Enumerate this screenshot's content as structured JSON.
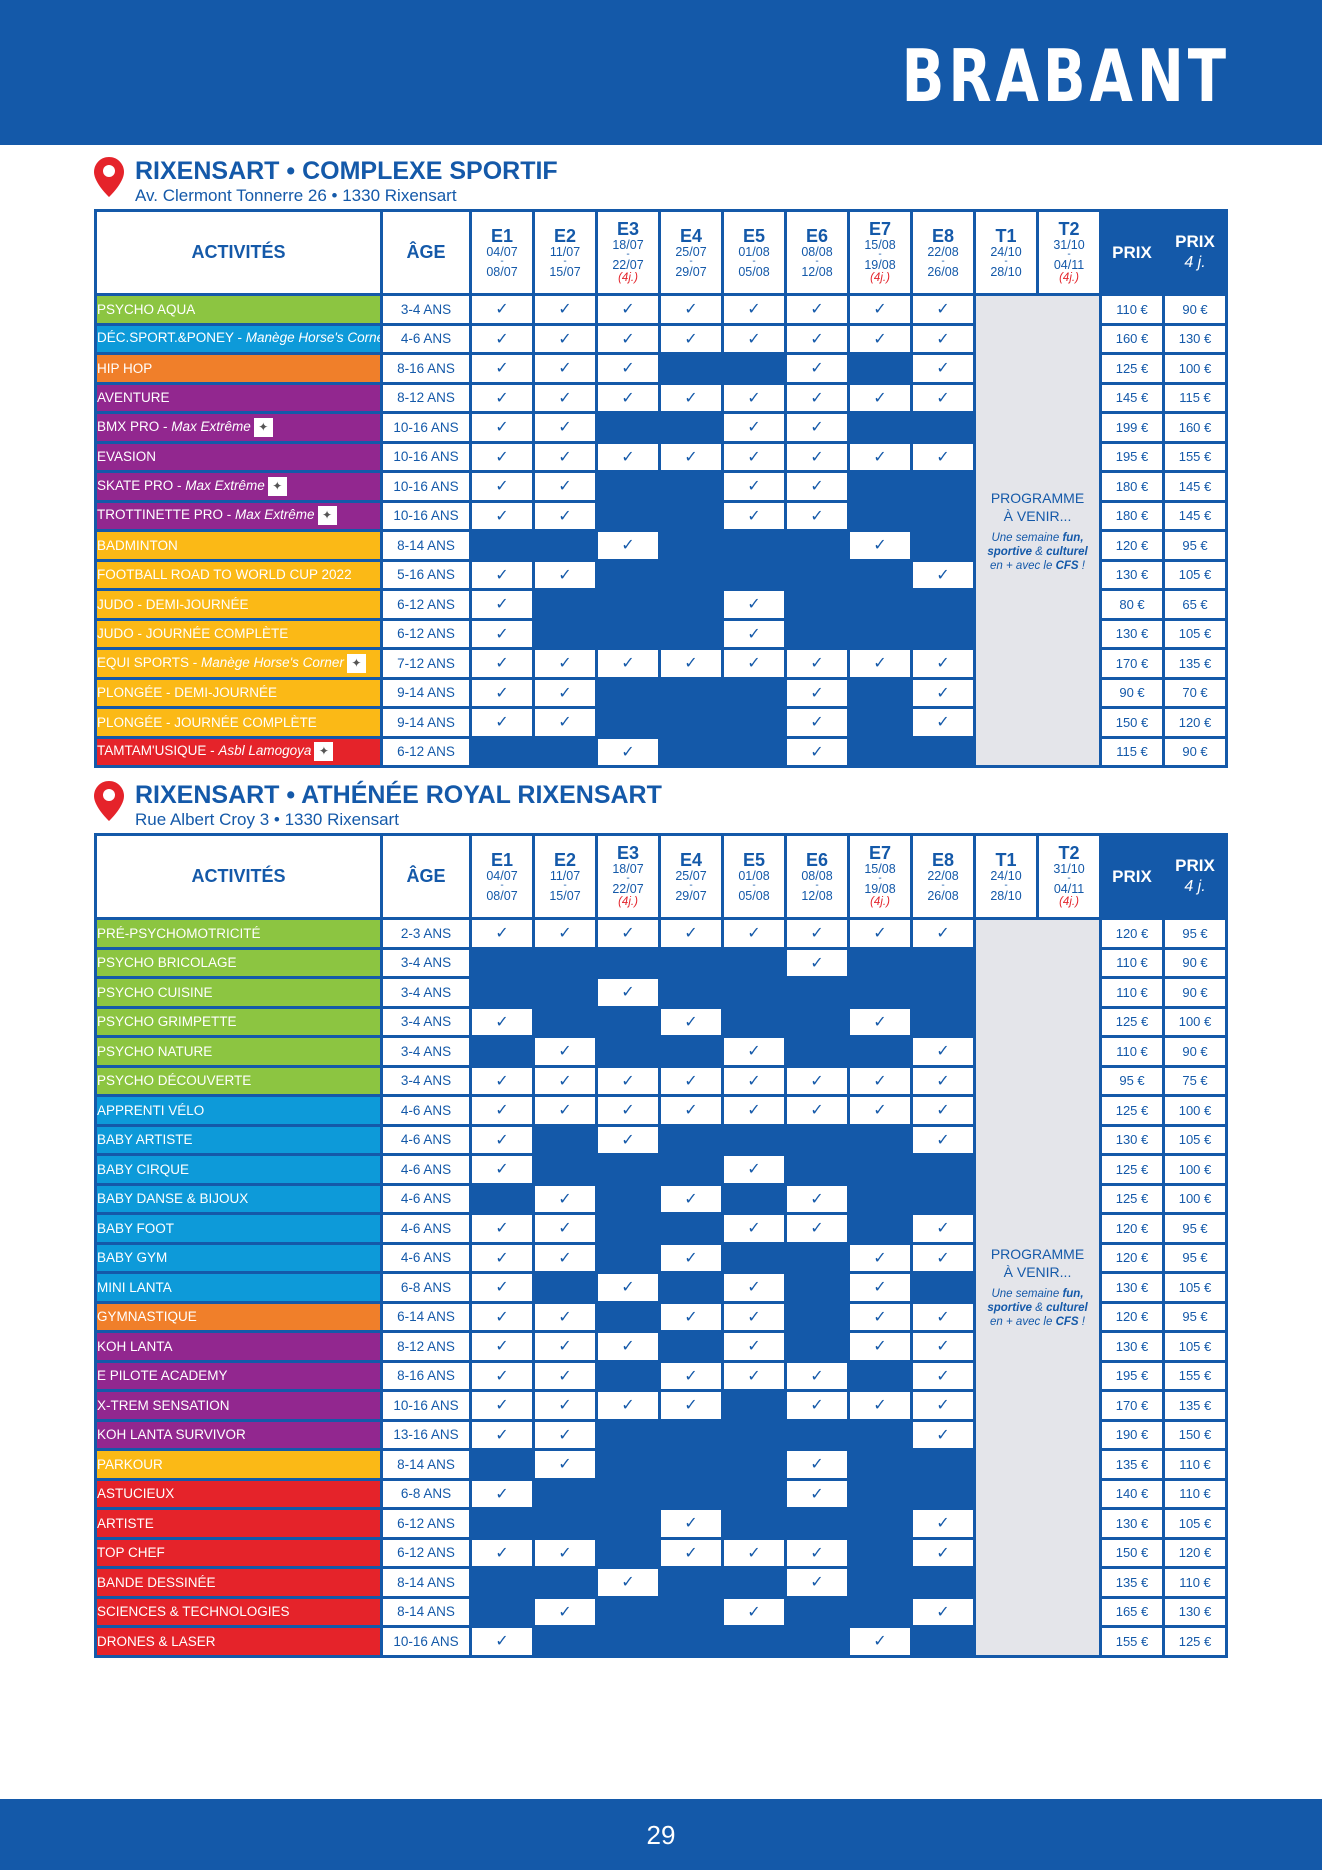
{
  "region_title": "BRABANT",
  "page_number": "29",
  "columns": {
    "activities": "ACTIVITÉS",
    "age": "ÂGE",
    "weeks": [
      {
        "code": "E1",
        "from": "04/07",
        "to": "08/07",
        "short": ""
      },
      {
        "code": "E2",
        "from": "11/07",
        "to": "15/07",
        "short": ""
      },
      {
        "code": "E3",
        "from": "18/07",
        "to": "22/07",
        "short": "(4j.)"
      },
      {
        "code": "E4",
        "from": "25/07",
        "to": "29/07",
        "short": ""
      },
      {
        "code": "E5",
        "from": "01/08",
        "to": "05/08",
        "short": ""
      },
      {
        "code": "E6",
        "from": "08/08",
        "to": "12/08",
        "short": ""
      },
      {
        "code": "E7",
        "from": "15/08",
        "to": "19/08",
        "short": "(4j.)"
      },
      {
        "code": "E8",
        "from": "22/08",
        "to": "26/08",
        "short": ""
      },
      {
        "code": "T1",
        "from": "24/10",
        "to": "28/10",
        "short": ""
      },
      {
        "code": "T2",
        "from": "31/10",
        "to": "04/11",
        "short": "(4j.)"
      }
    ],
    "price": "PRIX",
    "price4_line1": "PRIX",
    "price4_line2": "4 j."
  },
  "programme": {
    "line1": "PROGRAMME",
    "line2": "À VENIR...",
    "note_a": "Une semaine ",
    "note_fun": "fun,",
    "note_sportive": "sportive",
    "note_amp": " & ",
    "note_culturel": "culturel",
    "note_c": "en + avec le ",
    "note_cfs": "CFS",
    "note_end": " !"
  },
  "colors": {
    "green": "#8cc541",
    "blue": "#0d9ad9",
    "orange": "#f07f2a",
    "purple": "#92278f",
    "yellow": "#fbb916",
    "red": "#e5232a",
    "brand": "#1459a9"
  },
  "check_mark": "✓",
  "locations": [
    {
      "name": "RIXENSART • COMPLEXE SPORTIF",
      "address": "Av. Clermont Tonnerre 26 • 1330 Rixensart",
      "rows": [
        {
          "name": "PSYCHO AQUA",
          "partner": "",
          "logo": "",
          "color": "green",
          "age": "3-4 ANS",
          "weeks": [
            1,
            1,
            1,
            1,
            1,
            1,
            1,
            1
          ],
          "price": "110 €",
          "price4": "90 €"
        },
        {
          "name": "DÉC.SPORT.&PONEY - ",
          "partner": "Manège Horse's Corner",
          "logo": "horse-logo",
          "color": "blue",
          "age": "4-6 ANS",
          "weeks": [
            1,
            1,
            1,
            1,
            1,
            1,
            1,
            1
          ],
          "price": "160 €",
          "price4": "130 €"
        },
        {
          "name": "HIP HOP",
          "partner": "",
          "logo": "",
          "color": "orange",
          "age": "8-16 ANS",
          "weeks": [
            1,
            1,
            1,
            0,
            0,
            1,
            0,
            1
          ],
          "price": "125 €",
          "price4": "100 €"
        },
        {
          "name": "AVENTURE",
          "partner": "",
          "logo": "",
          "color": "purple",
          "age": "8-12 ANS",
          "weeks": [
            1,
            1,
            1,
            1,
            1,
            1,
            1,
            1
          ],
          "price": "145 €",
          "price4": "115 €"
        },
        {
          "name": "BMX PRO - ",
          "partner": "Max Extrême",
          "logo": "max-extreme-logo",
          "color": "purple",
          "age": "10-16 ANS",
          "weeks": [
            1,
            1,
            0,
            0,
            1,
            1,
            0,
            0
          ],
          "price": "199 €",
          "price4": "160 €"
        },
        {
          "name": "EVASION",
          "partner": "",
          "logo": "",
          "color": "purple",
          "age": "10-16 ANS",
          "weeks": [
            1,
            1,
            1,
            1,
            1,
            1,
            1,
            1
          ],
          "price": "195 €",
          "price4": "155 €"
        },
        {
          "name": "SKATE PRO - ",
          "partner": "Max Extrême",
          "logo": "max-extreme-logo",
          "color": "purple",
          "age": "10-16 ANS",
          "weeks": [
            1,
            1,
            0,
            0,
            1,
            1,
            0,
            0
          ],
          "price": "180 €",
          "price4": "145 €"
        },
        {
          "name": "TROTTINETTE PRO - ",
          "partner": "Max Extrême",
          "logo": "max-extreme-logo",
          "color": "purple",
          "age": "10-16 ANS",
          "weeks": [
            1,
            1,
            0,
            0,
            1,
            1,
            0,
            0
          ],
          "price": "180 €",
          "price4": "145 €"
        },
        {
          "name": "BADMINTON",
          "partner": "",
          "logo": "",
          "color": "yellow",
          "age": "8-14 ANS",
          "weeks": [
            0,
            0,
            1,
            0,
            0,
            0,
            1,
            0
          ],
          "price": "120 €",
          "price4": "95 €"
        },
        {
          "name": "FOOTBALL ROAD TO WORLD CUP 2022",
          "partner": "",
          "logo": "",
          "color": "yellow",
          "age": "5-16 ANS",
          "weeks": [
            1,
            1,
            0,
            0,
            0,
            0,
            0,
            1
          ],
          "price": "130 €",
          "price4": "105 €"
        },
        {
          "name": "JUDO - DEMI-JOURNÉE",
          "partner": "",
          "logo": "",
          "color": "yellow",
          "age": "6-12 ANS",
          "weeks": [
            1,
            0,
            0,
            0,
            1,
            0,
            0,
            0
          ],
          "price": "80 €",
          "price4": "65 €"
        },
        {
          "name": "JUDO - JOURNÉE COMPLÈTE",
          "partner": "",
          "logo": "",
          "color": "yellow",
          "age": "6-12 ANS",
          "weeks": [
            1,
            0,
            0,
            0,
            1,
            0,
            0,
            0
          ],
          "price": "130 €",
          "price4": "105 €"
        },
        {
          "name": "EQUI SPORTS - ",
          "partner": "Manège Horse's Corner",
          "logo": "horse-logo",
          "color": "yellow",
          "age": "7-12 ANS",
          "weeks": [
            1,
            1,
            1,
            1,
            1,
            1,
            1,
            1
          ],
          "price": "170 €",
          "price4": "135 €"
        },
        {
          "name": "PLONGÉE - DEMI-JOURNÉE",
          "partner": "",
          "logo": "",
          "color": "yellow",
          "age": "9-14 ANS",
          "weeks": [
            1,
            1,
            0,
            0,
            0,
            1,
            0,
            1
          ],
          "price": "90 €",
          "price4": "70 €"
        },
        {
          "name": "PLONGÉE - JOURNÉE COMPLÈTE",
          "partner": "",
          "logo": "",
          "color": "yellow",
          "age": "9-14 ANS",
          "weeks": [
            1,
            1,
            0,
            0,
            0,
            1,
            0,
            1
          ],
          "price": "150 €",
          "price4": "120 €"
        },
        {
          "name": "TAMTAM'USIQUE - ",
          "partner": "Asbl Lamogoya",
          "logo": "lamogoya-logo",
          "color": "red",
          "age": "6-12 ANS",
          "weeks": [
            0,
            0,
            1,
            0,
            0,
            1,
            0,
            0
          ],
          "price": "115 €",
          "price4": "90 €"
        }
      ]
    },
    {
      "name": "RIXENSART • ATHÉNÉE ROYAL RIXENSART",
      "address": "Rue Albert Croy 3 • 1330 Rixensart",
      "rows": [
        {
          "name": "PRÉ-PSYCHOMOTRICITÉ",
          "partner": "",
          "logo": "",
          "color": "green",
          "age": "2-3 ANS",
          "weeks": [
            1,
            1,
            1,
            1,
            1,
            1,
            1,
            1
          ],
          "price": "120 €",
          "price4": "95 €"
        },
        {
          "name": "PSYCHO BRICOLAGE",
          "partner": "",
          "logo": "",
          "color": "green",
          "age": "3-4 ANS",
          "weeks": [
            0,
            0,
            0,
            0,
            0,
            1,
            0,
            0
          ],
          "price": "110 €",
          "price4": "90 €"
        },
        {
          "name": "PSYCHO CUISINE",
          "partner": "",
          "logo": "",
          "color": "green",
          "age": "3-4 ANS",
          "weeks": [
            0,
            0,
            1,
            0,
            0,
            0,
            0,
            0
          ],
          "price": "110 €",
          "price4": "90 €"
        },
        {
          "name": "PSYCHO GRIMPETTE",
          "partner": "",
          "logo": "",
          "color": "green",
          "age": "3-4 ANS",
          "weeks": [
            1,
            0,
            0,
            1,
            0,
            0,
            1,
            0
          ],
          "price": "125 €",
          "price4": "100 €"
        },
        {
          "name": "PSYCHO NATURE",
          "partner": "",
          "logo": "",
          "color": "green",
          "age": "3-4 ANS",
          "weeks": [
            0,
            1,
            0,
            0,
            1,
            0,
            0,
            1
          ],
          "price": "110 €",
          "price4": "90 €"
        },
        {
          "name": "PSYCHO DÉCOUVERTE",
          "partner": "",
          "logo": "",
          "color": "green",
          "age": "3-4 ANS",
          "weeks": [
            1,
            1,
            1,
            1,
            1,
            1,
            1,
            1
          ],
          "price": "95 €",
          "price4": "75 €"
        },
        {
          "name": "APPRENTI VÉLO",
          "partner": "",
          "logo": "",
          "color": "blue",
          "age": "4-6 ANS",
          "weeks": [
            1,
            1,
            1,
            1,
            1,
            1,
            1,
            1
          ],
          "price": "125 €",
          "price4": "100 €"
        },
        {
          "name": "BABY ARTISTE",
          "partner": "",
          "logo": "",
          "color": "blue",
          "age": "4-6 ANS",
          "weeks": [
            1,
            0,
            1,
            0,
            0,
            0,
            0,
            1
          ],
          "price": "130 €",
          "price4": "105 €"
        },
        {
          "name": "BABY CIRQUE",
          "partner": "",
          "logo": "",
          "color": "blue",
          "age": "4-6 ANS",
          "weeks": [
            1,
            0,
            0,
            0,
            1,
            0,
            0,
            0
          ],
          "price": "125 €",
          "price4": "100 €"
        },
        {
          "name": "BABY DANSE & BIJOUX",
          "partner": "",
          "logo": "",
          "color": "blue",
          "age": "4-6 ANS",
          "weeks": [
            0,
            1,
            0,
            1,
            0,
            1,
            0,
            0
          ],
          "price": "125 €",
          "price4": "100 €"
        },
        {
          "name": "BABY FOOT",
          "partner": "",
          "logo": "",
          "color": "blue",
          "age": "4-6 ANS",
          "weeks": [
            1,
            1,
            0,
            0,
            1,
            1,
            0,
            1
          ],
          "price": "120 €",
          "price4": "95 €"
        },
        {
          "name": "BABY GYM",
          "partner": "",
          "logo": "",
          "color": "blue",
          "age": "4-6 ANS",
          "weeks": [
            1,
            1,
            0,
            1,
            0,
            0,
            1,
            1
          ],
          "price": "120 €",
          "price4": "95 €"
        },
        {
          "name": "MINI LANTA",
          "partner": "",
          "logo": "",
          "color": "blue",
          "age": "6-8 ANS",
          "weeks": [
            1,
            0,
            1,
            0,
            1,
            0,
            1,
            0
          ],
          "price": "130 €",
          "price4": "105 €"
        },
        {
          "name": "GYMNASTIQUE",
          "partner": "",
          "logo": "",
          "color": "orange",
          "age": "6-14 ANS",
          "weeks": [
            1,
            1,
            0,
            1,
            1,
            0,
            1,
            1
          ],
          "price": "120 €",
          "price4": "95 €"
        },
        {
          "name": "KOH LANTA",
          "partner": "",
          "logo": "",
          "color": "purple",
          "age": "8-12 ANS",
          "weeks": [
            1,
            1,
            1,
            0,
            1,
            0,
            1,
            1
          ],
          "price": "130 €",
          "price4": "105 €"
        },
        {
          "name": "E PILOTE ACADEMY",
          "partner": "",
          "logo": "",
          "color": "purple",
          "age": "8-16 ANS",
          "weeks": [
            1,
            1,
            0,
            1,
            1,
            1,
            0,
            1
          ],
          "price": "195 €",
          "price4": "155 €"
        },
        {
          "name": "X-TREM SENSATION",
          "partner": "",
          "logo": "",
          "color": "purple",
          "age": "10-16 ANS",
          "weeks": [
            1,
            1,
            1,
            1,
            0,
            1,
            1,
            1
          ],
          "price": "170 €",
          "price4": "135 €"
        },
        {
          "name": "KOH LANTA SURVIVOR",
          "partner": "",
          "logo": "",
          "color": "purple",
          "age": "13-16 ANS",
          "weeks": [
            1,
            1,
            0,
            0,
            0,
            0,
            0,
            1
          ],
          "price": "190 €",
          "price4": "150 €"
        },
        {
          "name": "PARKOUR",
          "partner": "",
          "logo": "",
          "color": "yellow",
          "age": "8-14 ANS",
          "weeks": [
            0,
            1,
            0,
            0,
            0,
            1,
            0,
            0
          ],
          "price": "135 €",
          "price4": "110 €"
        },
        {
          "name": "ASTUCIEUX",
          "partner": "",
          "logo": "",
          "color": "red",
          "age": "6-8 ANS",
          "weeks": [
            1,
            0,
            0,
            0,
            0,
            1,
            0,
            0
          ],
          "price": "140 €",
          "price4": "110 €"
        },
        {
          "name": "ARTISTE",
          "partner": "",
          "logo": "",
          "color": "red",
          "age": "6-12 ANS",
          "weeks": [
            0,
            0,
            0,
            1,
            0,
            0,
            0,
            1
          ],
          "price": "130 €",
          "price4": "105 €"
        },
        {
          "name": "TOP CHEF",
          "partner": "",
          "logo": "",
          "color": "red",
          "age": "6-12 ANS",
          "weeks": [
            1,
            1,
            0,
            1,
            1,
            1,
            0,
            1
          ],
          "price": "150 €",
          "price4": "120 €"
        },
        {
          "name": "BANDE DESSINÉE",
          "partner": "",
          "logo": "",
          "color": "red",
          "age": "8-14 ANS",
          "weeks": [
            0,
            0,
            1,
            0,
            0,
            1,
            0,
            0
          ],
          "price": "135 €",
          "price4": "110 €"
        },
        {
          "name": "SCIENCES & TECHNOLOGIES",
          "partner": "",
          "logo": "",
          "color": "red",
          "age": "8-14 ANS",
          "weeks": [
            0,
            1,
            0,
            0,
            1,
            0,
            0,
            1
          ],
          "price": "165 €",
          "price4": "130 €"
        },
        {
          "name": "DRONES & LASER",
          "partner": "",
          "logo": "",
          "color": "red",
          "age": "10-16 ANS",
          "weeks": [
            1,
            0,
            0,
            0,
            0,
            0,
            1,
            0
          ],
          "price": "155 €",
          "price4": "125 €"
        }
      ]
    }
  ]
}
